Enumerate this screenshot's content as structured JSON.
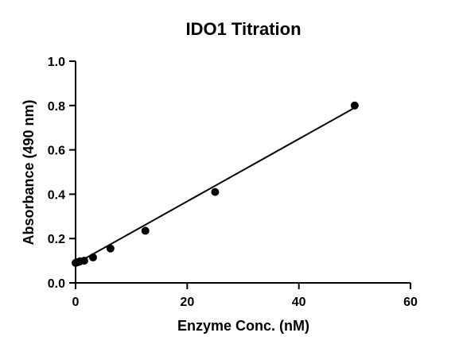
{
  "chart_data": {
    "type": "scatter",
    "title": "IDO1 Titration",
    "xlabel": "Enzyme Conc. (nM)",
    "ylabel": "Absorbance (490 nm)",
    "xlim": [
      0,
      60
    ],
    "ylim": [
      0,
      1.0
    ],
    "xticks": [
      0,
      20,
      40,
      60
    ],
    "yticks": [
      0.0,
      0.2,
      0.4,
      0.6,
      0.8,
      1.0
    ],
    "x_tick_labels": [
      "0",
      "20",
      "40",
      "60"
    ],
    "y_tick_labels": [
      "0.0",
      "0.2",
      "0.4",
      "0.6",
      "0.8",
      "1.0"
    ],
    "grid": false,
    "series": [
      {
        "x": [
          0,
          0.39,
          0.78,
          1.56,
          3.13,
          6.25,
          12.5,
          25,
          50
        ],
        "y": [
          0.09,
          0.093,
          0.097,
          0.1,
          0.115,
          0.155,
          0.235,
          0.41,
          0.8
        ],
        "color": "#000000"
      }
    ],
    "fit_line": {
      "x": [
        0,
        50
      ],
      "y": [
        0.086,
        0.79
      ],
      "color": "#000000"
    }
  }
}
